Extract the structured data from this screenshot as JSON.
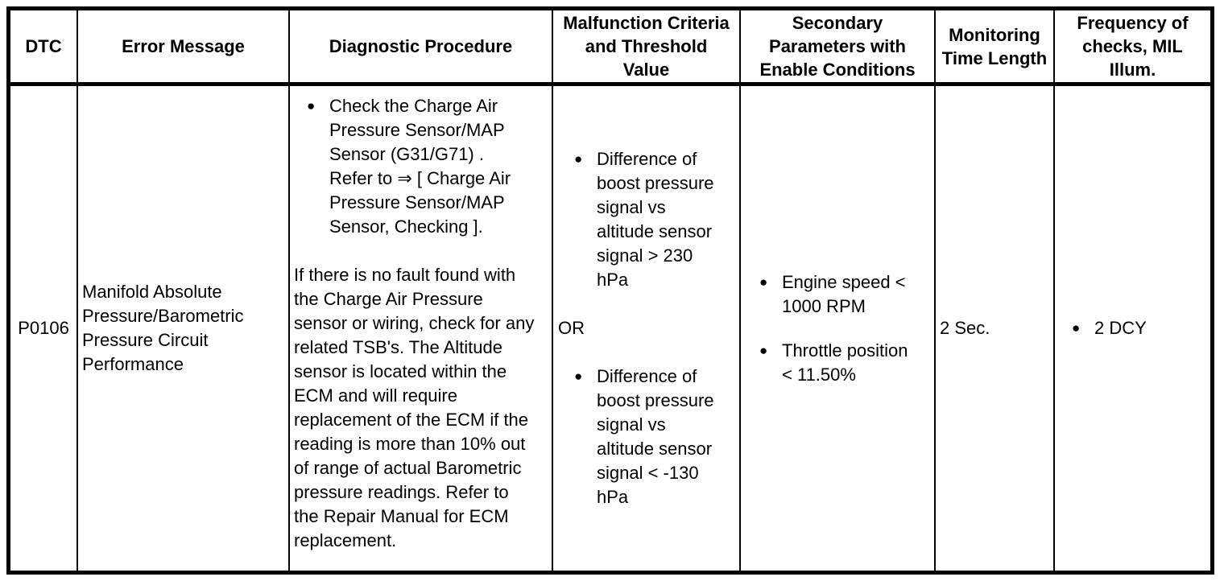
{
  "colors": {
    "background": "#ffffff",
    "text": "#000000",
    "border": "#000000"
  },
  "icons": {
    "bullet": "●"
  },
  "table": {
    "headers": [
      "DTC",
      "Error Message",
      "Diagnostic Procedure",
      "Malfunction Criteria and Threshold Value",
      "Secondary Parameters with Enable Conditions",
      "Monitoring Time Length",
      "Frequency of checks, MIL Illum."
    ],
    "row": {
      "dtc": "P0106",
      "error_message": "Manifold Absolute Pressure/Barometric Pressure Circuit Performance",
      "diagnostic_procedure": {
        "step_1": "Check the Charge Air Pressure Sensor/MAP Sensor (G31/G71) .",
        "step_1_reference": "Refer to ⇒ [ Charge Air Pressure Sensor/MAP Sensor, Checking ].",
        "note": "If there is no fault found with the Charge Air Pressure sensor or wiring, check for any related TSB's. The Altitude sensor is located within the ECM and will require replacement of the ECM if the reading is more than 10% out of range of actual Barometric pressure readings. Refer to the Repair Manual for ECM replacement."
      },
      "malfunction_criteria": {
        "condition_1": "Difference of boost pressure signal vs altitude sensor signal > 230 hPa",
        "operator": "OR",
        "condition_2": "Difference of boost pressure signal vs altitude sensor signal < -130 hPa"
      },
      "secondary_parameters": {
        "condition_1": "Engine speed < 1000 RPM",
        "condition_2": "Throttle position < 11.50%"
      },
      "monitoring_time_length": "2 Sec.",
      "frequency_of_checks": "2 DCY"
    }
  }
}
